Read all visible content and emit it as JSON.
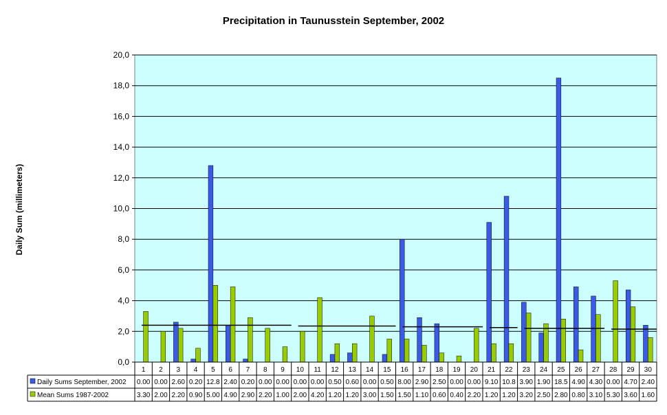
{
  "chart_data": {
    "type": "bar",
    "title": "Precipitation in Taunusstein September, 2002",
    "ylabel": "Daily Sum (millimeters)",
    "xlabel": "",
    "ylim": [
      0,
      20
    ],
    "ytick_step": 2,
    "ytick_labels": [
      "0,0",
      "2,0",
      "4,0",
      "6,0",
      "8,0",
      "10,0",
      "12,0",
      "14,0",
      "16,0",
      "18,0",
      "20,0"
    ],
    "grid": true,
    "legend_position": "bottom-table",
    "categories": [
      "1",
      "2",
      "3",
      "4",
      "5",
      "6",
      "7",
      "8",
      "9",
      "10",
      "11",
      "12",
      "13",
      "14",
      "15",
      "16",
      "17",
      "18",
      "19",
      "20",
      "21",
      "22",
      "23",
      "24",
      "25",
      "26",
      "27",
      "28",
      "29",
      "30"
    ],
    "series": [
      {
        "name": "Daily Sums September, 2002",
        "color": "#3B5BE6",
        "values": [
          0.0,
          0.0,
          2.6,
          0.2,
          12.8,
          2.4,
          0.2,
          0.0,
          0.0,
          0.0,
          0.0,
          0.5,
          0.6,
          0.0,
          0.5,
          8.0,
          2.9,
          2.5,
          0.0,
          0.0,
          9.1,
          10.8,
          3.9,
          1.9,
          18.5,
          4.9,
          4.3,
          0.0,
          4.7,
          2.4
        ],
        "table_labels": [
          "0.00",
          "0.00",
          "2.60",
          "0.20",
          "12.8",
          "2.40",
          "0.20",
          "0.00",
          "0.00",
          "0.00",
          "0.00",
          "0.50",
          "0.60",
          "0.00",
          "0.50",
          "8.00",
          "2.90",
          "2.50",
          "0.00",
          "0.00",
          "9.10",
          "10.8",
          "3.90",
          "1.90",
          "18.5",
          "4.90",
          "4.30",
          "0.00",
          "4.70",
          "2.40"
        ]
      },
      {
        "name": "Mean Sums 1987-2002",
        "color": "#99CC00",
        "values": [
          3.3,
          2.0,
          2.2,
          0.9,
          5.0,
          4.9,
          2.9,
          2.2,
          1.0,
          2.0,
          4.2,
          1.2,
          1.2,
          3.0,
          1.5,
          1.5,
          1.1,
          0.6,
          0.4,
          2.2,
          1.2,
          1.2,
          3.2,
          2.5,
          2.8,
          0.8,
          3.1,
          5.3,
          3.6,
          1.6
        ],
        "table_labels": [
          "3.30",
          "2.00",
          "2.20",
          "0.90",
          "5.00",
          "4.90",
          "2.90",
          "2.20",
          "1.00",
          "2.00",
          "4.20",
          "1.20",
          "1.20",
          "3.00",
          "1.50",
          "1.50",
          "1.10",
          "0.60",
          "0.40",
          "2.20",
          "1.20",
          "1.20",
          "3.20",
          "2.50",
          "2.80",
          "0.80",
          "3.10",
          "5.30",
          "3.60",
          "1.60"
        ]
      }
    ],
    "trendline": {
      "start": 2.4,
      "end": 2.15,
      "color": "#000000"
    },
    "plot_background": "#CCFFFF"
  }
}
